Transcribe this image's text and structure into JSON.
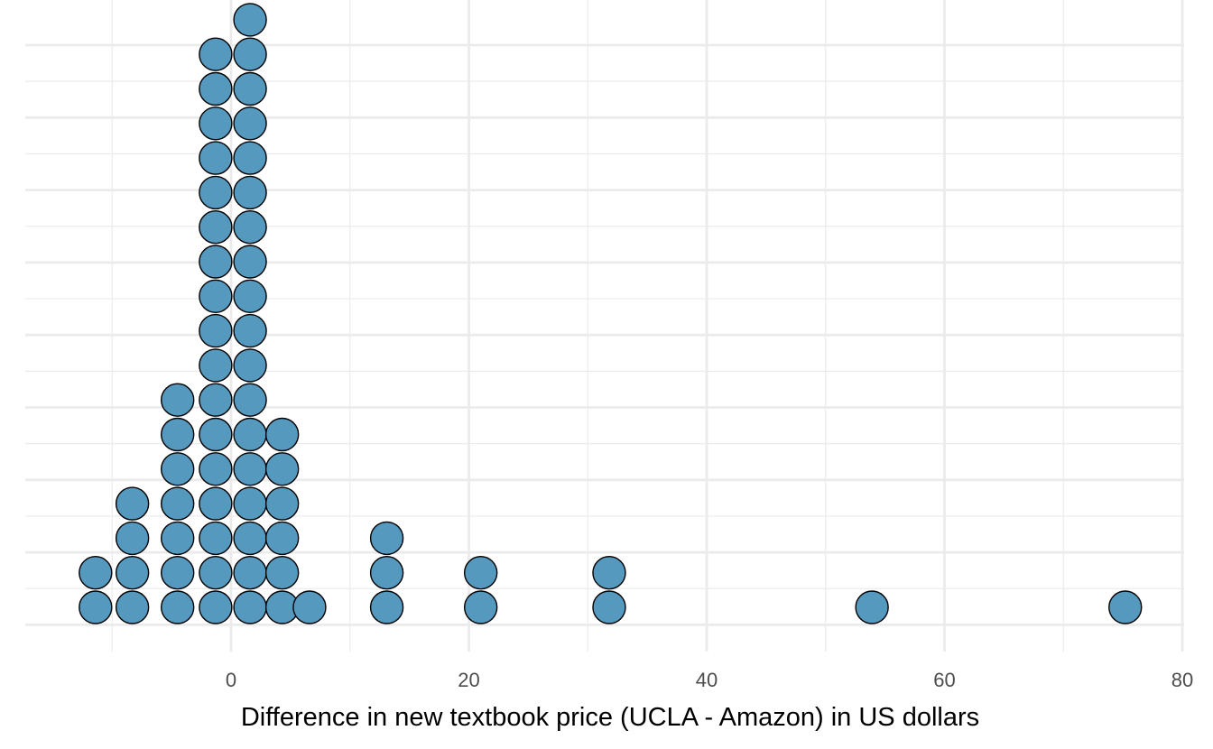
{
  "chart_data": {
    "type": "dotplot",
    "title": "",
    "xlabel": "Difference in new textbook price (UCLA - Amazon) in US dollars",
    "ylabel": "",
    "xlim": [
      -17.5,
      81
    ],
    "x_ticks": [
      0,
      20,
      40,
      60,
      80
    ],
    "x_tick_labels": [
      "0",
      "20",
      "40",
      "60",
      "80"
    ],
    "grid": true,
    "dot_color": "#5599bf",
    "dot_outline": "#000000",
    "stacks": [
      {
        "x": -11.4,
        "count": 2
      },
      {
        "x": -8.3,
        "count": 4
      },
      {
        "x": -4.5,
        "count": 7
      },
      {
        "x": -1.3,
        "count": 17
      },
      {
        "x": 1.6,
        "count": 18
      },
      {
        "x": 4.3,
        "count": 6
      },
      {
        "x": 6.6,
        "count": 1
      },
      {
        "x": 13.1,
        "count": 3
      },
      {
        "x": 21.0,
        "count": 2
      },
      {
        "x": 31.8,
        "count": 2
      },
      {
        "x": 53.9,
        "count": 1
      },
      {
        "x": 75.2,
        "count": 1
      }
    ]
  }
}
